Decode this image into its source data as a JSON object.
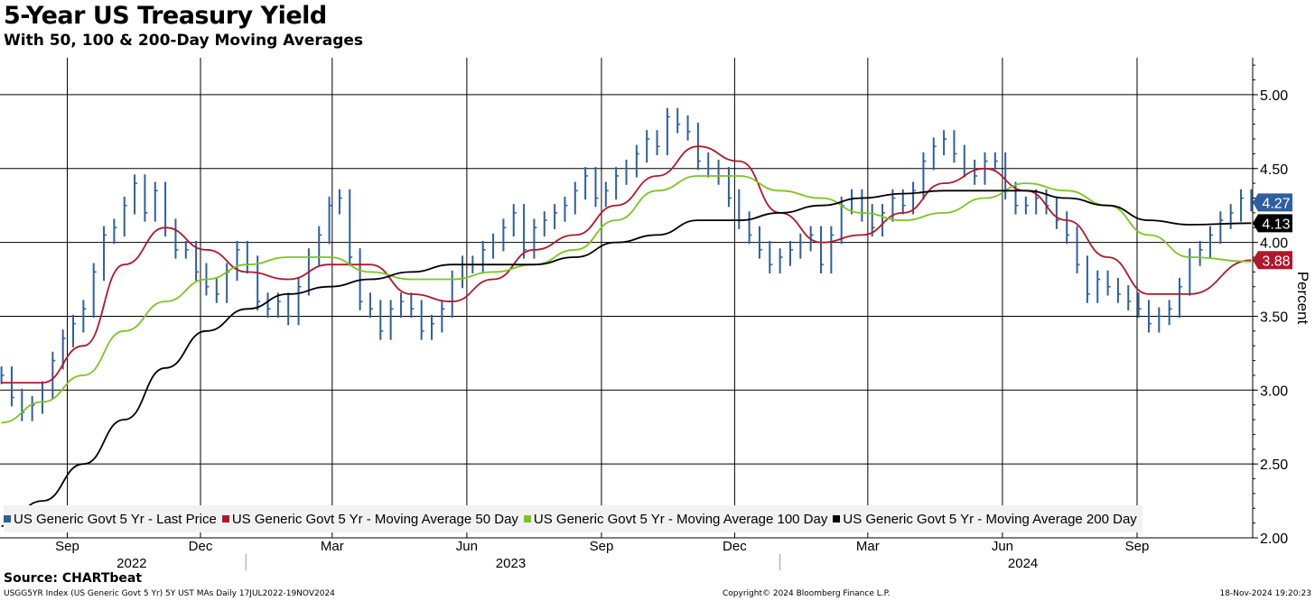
{
  "header": {
    "title": "5-Year US Treasury Yield",
    "subtitle": "With 50, 100 & 200-Day Moving Averages"
  },
  "footer": {
    "source": "Source: CHARTbeat",
    "left": "USGG5YR Index (US Generic Govt 5 Yr) 5Y UST MAs  Daily 17JUL2022-19NOV2024",
    "middle": "Copyright© 2024 Bloomberg Finance L.P.",
    "right": "18-Nov-2024 19:20:23"
  },
  "colors": {
    "price": "#2f5f9e",
    "ma50": "#b0182a",
    "ma100": "#7cc521",
    "ma200": "#000000",
    "grid": "#000000",
    "legend_bg": "#f2f2f2"
  },
  "chart_data": {
    "type": "line",
    "title": "5-Year US Treasury Yield",
    "subtitle": "With 50, 100 & 200-Day Moving Averages",
    "ylabel": "Percent",
    "ylim": [
      2.0,
      5.25
    ],
    "yticks": [
      "2.00",
      "2.50",
      "3.00",
      "3.50",
      "4.00",
      "4.50",
      "5.00"
    ],
    "grid": true,
    "legend_position": "bottom",
    "x_range": [
      "2022-07-17",
      "2024-11-19"
    ],
    "month_ticks": [
      {
        "label": "Sep",
        "date": "2022-09-01"
      },
      {
        "label": "Dec",
        "date": "2022-12-01"
      },
      {
        "label": "Mar",
        "date": "2023-03-01"
      },
      {
        "label": "Jun",
        "date": "2023-06-01"
      },
      {
        "label": "Sep",
        "date": "2023-09-01"
      },
      {
        "label": "Dec",
        "date": "2023-12-01"
      },
      {
        "label": "Mar",
        "date": "2024-03-01"
      },
      {
        "label": "Jun",
        "date": "2024-06-01"
      },
      {
        "label": "Sep",
        "date": "2024-09-01"
      }
    ],
    "year_labels": [
      {
        "label": "2022",
        "date": "2022-10-15"
      },
      {
        "label": "2023",
        "date": "2023-07-01"
      },
      {
        "label": "2024",
        "date": "2024-06-15"
      }
    ],
    "year_separators": [
      "2023-01-01",
      "2024-01-01"
    ],
    "last_values": [
      {
        "series": "US Generic Govt 5 Yr - Last Price",
        "label": "4.27",
        "value": 4.27,
        "color": "#2f5f9e"
      },
      {
        "series": "US Generic Govt 5 Yr - Moving Average 200 Day",
        "label": "4.13",
        "value": 4.13,
        "color": "#000000"
      },
      {
        "series": "US Generic Govt 5 Yr - Moving Average 50 Day",
        "label": "3.88",
        "value": 3.88,
        "color": "#b0182a"
      }
    ],
    "series": [
      {
        "name": "US Generic Govt 5 Yr - Last Price",
        "style": "bars",
        "color": "#2f5f9e",
        "x": [
          "2022-07-18",
          "2022-07-25",
          "2022-08-01",
          "2022-08-08",
          "2022-08-15",
          "2022-08-22",
          "2022-08-29",
          "2022-09-05",
          "2022-09-12",
          "2022-09-19",
          "2022-09-26",
          "2022-10-03",
          "2022-10-10",
          "2022-10-17",
          "2022-10-24",
          "2022-10-31",
          "2022-11-07",
          "2022-11-14",
          "2022-11-21",
          "2022-11-28",
          "2022-12-05",
          "2022-12-12",
          "2022-12-19",
          "2022-12-26",
          "2023-01-02",
          "2023-01-09",
          "2023-01-16",
          "2023-01-23",
          "2023-01-30",
          "2023-02-06",
          "2023-02-13",
          "2023-02-20",
          "2023-02-27",
          "2023-03-06",
          "2023-03-13",
          "2023-03-20",
          "2023-03-27",
          "2023-04-03",
          "2023-04-10",
          "2023-04-17",
          "2023-04-24",
          "2023-05-01",
          "2023-05-08",
          "2023-05-15",
          "2023-05-22",
          "2023-05-29",
          "2023-06-05",
          "2023-06-12",
          "2023-06-19",
          "2023-06-26",
          "2023-07-03",
          "2023-07-10",
          "2023-07-17",
          "2023-07-24",
          "2023-07-31",
          "2023-08-07",
          "2023-08-14",
          "2023-08-21",
          "2023-08-28",
          "2023-09-04",
          "2023-09-11",
          "2023-09-18",
          "2023-09-25",
          "2023-10-02",
          "2023-10-09",
          "2023-10-16",
          "2023-10-23",
          "2023-10-30",
          "2023-11-06",
          "2023-11-13",
          "2023-11-20",
          "2023-11-27",
          "2023-12-04",
          "2023-12-11",
          "2023-12-18",
          "2023-12-25",
          "2024-01-01",
          "2024-01-08",
          "2024-01-15",
          "2024-01-22",
          "2024-01-29",
          "2024-02-05",
          "2024-02-12",
          "2024-02-19",
          "2024-02-26",
          "2024-03-04",
          "2024-03-11",
          "2024-03-18",
          "2024-03-25",
          "2024-04-01",
          "2024-04-08",
          "2024-04-15",
          "2024-04-22",
          "2024-04-29",
          "2024-05-06",
          "2024-05-13",
          "2024-05-20",
          "2024-05-27",
          "2024-06-03",
          "2024-06-10",
          "2024-06-17",
          "2024-06-24",
          "2024-07-01",
          "2024-07-08",
          "2024-07-15",
          "2024-07-22",
          "2024-07-29",
          "2024-08-05",
          "2024-08-12",
          "2024-08-19",
          "2024-08-26",
          "2024-09-02",
          "2024-09-09",
          "2024-09-16",
          "2024-09-23",
          "2024-09-30",
          "2024-10-07",
          "2024-10-14",
          "2024-10-21",
          "2024-10-28",
          "2024-11-04",
          "2024-11-11",
          "2024-11-18"
        ],
        "values": [
          3.1,
          2.95,
          2.85,
          2.9,
          3.0,
          3.2,
          3.35,
          3.45,
          3.55,
          3.8,
          4.05,
          4.1,
          4.25,
          4.4,
          4.2,
          4.35,
          4.1,
          3.95,
          3.95,
          3.8,
          3.7,
          3.65,
          3.8,
          3.95,
          3.85,
          3.6,
          3.55,
          3.6,
          3.5,
          3.7,
          3.9,
          4.05,
          4.25,
          4.3,
          3.9,
          3.6,
          3.55,
          3.4,
          3.55,
          3.6,
          3.55,
          3.4,
          3.45,
          3.55,
          3.75,
          3.85,
          3.85,
          3.95,
          4.0,
          4.1,
          4.2,
          3.95,
          4.1,
          4.15,
          4.2,
          4.25,
          4.35,
          4.45,
          4.3,
          4.35,
          4.45,
          4.5,
          4.6,
          4.7,
          4.65,
          4.85,
          4.8,
          4.75,
          4.55,
          4.5,
          4.45,
          4.3,
          4.15,
          4.05,
          3.95,
          3.85,
          3.9,
          3.95,
          4.0,
          4.05,
          3.85,
          4.05,
          4.25,
          4.3,
          4.2,
          4.1,
          4.2,
          4.3,
          4.25,
          4.35,
          4.55,
          4.65,
          4.7,
          4.6,
          4.5,
          4.45,
          4.55,
          4.55,
          4.35,
          4.25,
          4.25,
          4.3,
          4.25,
          4.15,
          4.05,
          3.85,
          3.65,
          3.75,
          3.7,
          3.65,
          3.6,
          3.55,
          3.45,
          3.5,
          3.55,
          3.7,
          3.9,
          3.95,
          4.05,
          4.15,
          4.2,
          4.3,
          4.27
        ]
      },
      {
        "name": "US Generic Govt 5 Yr - Moving Average 50 Day",
        "style": "line",
        "color": "#b0182a",
        "x": [
          "2022-07-18",
          "2022-08-15",
          "2022-09-12",
          "2022-10-10",
          "2022-11-07",
          "2022-12-05",
          "2023-01-02",
          "2023-01-30",
          "2023-02-27",
          "2023-03-27",
          "2023-04-24",
          "2023-05-22",
          "2023-06-19",
          "2023-07-17",
          "2023-08-14",
          "2023-09-11",
          "2023-10-09",
          "2023-11-06",
          "2023-12-04",
          "2024-01-01",
          "2024-01-29",
          "2024-02-26",
          "2024-03-25",
          "2024-04-22",
          "2024-05-20",
          "2024-06-17",
          "2024-07-15",
          "2024-08-12",
          "2024-09-09",
          "2024-10-07",
          "2024-11-18"
        ],
        "values": [
          3.05,
          3.05,
          3.3,
          3.85,
          4.1,
          3.95,
          3.8,
          3.75,
          3.85,
          3.85,
          3.65,
          3.6,
          3.75,
          3.95,
          4.05,
          4.25,
          4.45,
          4.65,
          4.55,
          4.2,
          4.0,
          4.05,
          4.2,
          4.4,
          4.5,
          4.35,
          4.15,
          3.9,
          3.65,
          3.65,
          3.88
        ]
      },
      {
        "name": "US Generic Govt 5 Yr - Moving Average 100 Day",
        "style": "line",
        "color": "#7cc521",
        "x": [
          "2022-07-18",
          "2022-08-15",
          "2022-09-12",
          "2022-10-10",
          "2022-11-07",
          "2022-12-05",
          "2023-01-02",
          "2023-01-30",
          "2023-02-27",
          "2023-03-27",
          "2023-04-24",
          "2023-05-22",
          "2023-06-19",
          "2023-07-17",
          "2023-08-14",
          "2023-09-11",
          "2023-10-09",
          "2023-11-06",
          "2023-12-04",
          "2024-01-01",
          "2024-01-29",
          "2024-02-26",
          "2024-03-25",
          "2024-04-22",
          "2024-05-20",
          "2024-06-17",
          "2024-07-15",
          "2024-08-12",
          "2024-09-09",
          "2024-10-07",
          "2024-11-18"
        ],
        "values": [
          2.78,
          2.92,
          3.1,
          3.4,
          3.6,
          3.75,
          3.85,
          3.9,
          3.9,
          3.8,
          3.75,
          3.75,
          3.8,
          3.85,
          3.95,
          4.15,
          4.35,
          4.45,
          4.45,
          4.35,
          4.3,
          4.2,
          4.15,
          4.2,
          4.3,
          4.4,
          4.35,
          4.25,
          4.05,
          3.9,
          3.87
        ]
      },
      {
        "name": "US Generic Govt 5 Yr - Moving Average 200 Day",
        "style": "line",
        "color": "#000000",
        "x": [
          "2022-07-18",
          "2022-08-15",
          "2022-09-12",
          "2022-10-10",
          "2022-11-07",
          "2022-12-05",
          "2023-01-02",
          "2023-01-30",
          "2023-02-27",
          "2023-03-27",
          "2023-04-24",
          "2023-05-22",
          "2023-06-19",
          "2023-07-17",
          "2023-08-14",
          "2023-09-11",
          "2023-10-09",
          "2023-11-06",
          "2023-12-04",
          "2024-01-01",
          "2024-01-29",
          "2024-02-26",
          "2024-03-25",
          "2024-04-22",
          "2024-05-20",
          "2024-06-17",
          "2024-07-15",
          "2024-08-12",
          "2024-09-09",
          "2024-10-07",
          "2024-11-18"
        ],
        "values": [
          2.08,
          2.25,
          2.5,
          2.8,
          3.15,
          3.4,
          3.55,
          3.65,
          3.7,
          3.75,
          3.8,
          3.85,
          3.85,
          3.85,
          3.9,
          4.0,
          4.05,
          4.15,
          4.15,
          4.2,
          4.25,
          4.3,
          4.33,
          4.35,
          4.35,
          4.35,
          4.3,
          4.25,
          4.15,
          4.12,
          4.13
        ]
      }
    ]
  }
}
